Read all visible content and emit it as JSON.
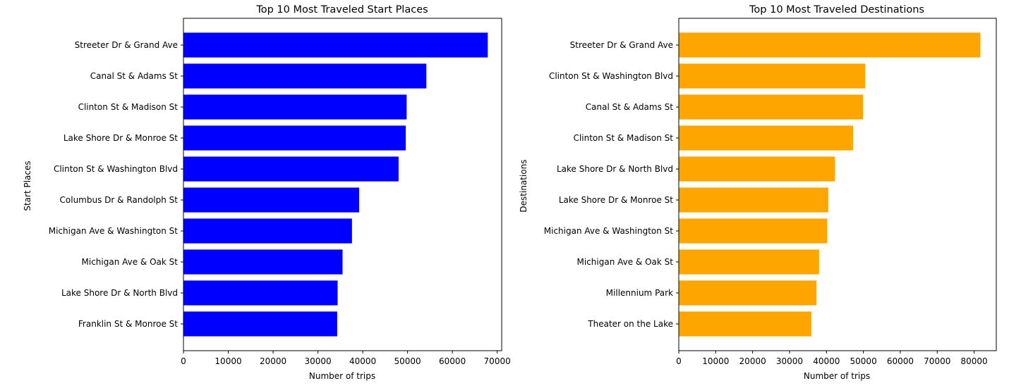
{
  "chart_data": [
    {
      "type": "bar",
      "orientation": "horizontal",
      "title": "Top 10 Most Traveled Start Places",
      "xlabel": "Number of trips",
      "ylabel": "Start Places",
      "xlim": [
        0,
        71000
      ],
      "xticks": [
        0,
        10000,
        20000,
        30000,
        40000,
        50000,
        60000,
        70000
      ],
      "color": "#0000ff",
      "categories": [
        "Streeter Dr & Grand Ave",
        "Canal St & Adams St",
        "Clinton St & Madison St",
        "Lake Shore Dr & Monroe St",
        "Clinton St & Washington Blvd",
        "Columbus Dr & Randolph St",
        "Michigan Ave & Washington St",
        "Michigan Ave & Oak St",
        "Lake Shore Dr & North Blvd",
        "Franklin St & Monroe St"
      ],
      "values": [
        67900,
        54200,
        49800,
        49600,
        48000,
        39200,
        37600,
        35500,
        34400,
        34300
      ]
    },
    {
      "type": "bar",
      "orientation": "horizontal",
      "title": "Top 10 Most Traveled Destinations",
      "xlabel": "Number of trips",
      "ylabel": "Destinations",
      "xlim": [
        0,
        86000
      ],
      "xticks": [
        0,
        10000,
        20000,
        30000,
        40000,
        50000,
        60000,
        70000,
        80000
      ],
      "color": "#ffa500",
      "categories": [
        "Streeter Dr & Grand Ave",
        "Clinton St & Washington Blvd",
        "Canal St & Adams St",
        "Clinton St & Madison St",
        "Lake Shore Dr & North Blvd",
        "Lake Shore Dr & Monroe St",
        "Michigan Ave & Washington St",
        "Michigan Ave & Oak St",
        "Millennium Park",
        "Theater on the Lake"
      ],
      "values": [
        81700,
        50500,
        49900,
        47200,
        42300,
        40500,
        40200,
        38000,
        37300,
        35900
      ]
    }
  ]
}
